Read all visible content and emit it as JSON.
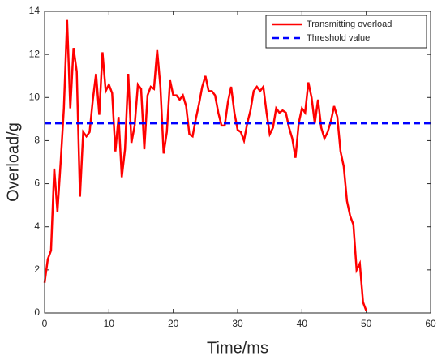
{
  "chart_data": {
    "type": "line",
    "xlabel": "Time/ms",
    "ylabel": "Overload/g",
    "xlim": [
      0,
      60
    ],
    "xticks": [
      0,
      10,
      20,
      30,
      40,
      50,
      60
    ],
    "ylim": [
      0,
      14
    ],
    "yticks": [
      0,
      2,
      4,
      6,
      8,
      10,
      12,
      14
    ],
    "legend": "upper right",
    "grid": false,
    "series": [
      {
        "name": "Transmitting overload",
        "color": "#ff0000",
        "dash": "solid",
        "x": [
          0,
          0.5,
          1,
          1.5,
          2,
          2.5,
          3,
          3.5,
          4,
          4.5,
          5,
          5.5,
          6,
          6.5,
          7,
          7.5,
          8,
          8.5,
          9,
          9.5,
          10,
          10.5,
          11,
          11.5,
          12,
          12.5,
          13,
          13.5,
          14,
          14.5,
          15,
          15.5,
          16,
          16.5,
          17,
          17.5,
          18,
          18.5,
          19,
          19.5,
          20,
          20.5,
          21,
          21.5,
          22,
          22.5,
          23,
          23.5,
          24,
          24.5,
          25,
          25.5,
          26,
          26.5,
          27,
          27.5,
          28,
          28.5,
          29,
          29.5,
          30,
          30.5,
          31,
          31.5,
          32,
          32.5,
          33,
          33.5,
          34,
          34.5,
          35,
          35.5,
          36,
          36.5,
          37,
          37.5,
          38,
          38.5,
          39,
          39.5,
          40,
          40.5,
          41,
          41.5,
          42,
          42.5,
          43,
          43.5,
          44,
          44.5,
          45,
          45.5,
          46,
          46.5,
          47,
          47.5,
          48,
          48.5,
          49,
          49.5,
          50
        ],
        "values": [
          1.4,
          2.5,
          2.9,
          6.7,
          4.7,
          7.0,
          9.5,
          13.6,
          9.5,
          12.3,
          11.2,
          5.4,
          8.4,
          8.2,
          8.4,
          9.9,
          11.1,
          9.2,
          12.1,
          10.3,
          10.6,
          10.2,
          7.5,
          9.1,
          6.3,
          7.6,
          11.1,
          7.9,
          8.7,
          10.6,
          10.4,
          7.6,
          10.1,
          10.5,
          10.4,
          12.2,
          10.5,
          7.4,
          8.4,
          10.8,
          10.1,
          10.1,
          9.9,
          10.1,
          9.6,
          8.3,
          8.2,
          9.0,
          9.7,
          10.5,
          11.0,
          10.3,
          10.3,
          10.1,
          9.3,
          8.7,
          8.7,
          9.8,
          10.5,
          9.3,
          8.5,
          8.4,
          8.0,
          8.8,
          9.4,
          10.3,
          10.5,
          10.3,
          10.5,
          9.3,
          8.3,
          8.6,
          9.5,
          9.3,
          9.4,
          9.3,
          8.6,
          8.1,
          7.2,
          8.8,
          9.5,
          9.3,
          10.7,
          10.0,
          8.8,
          9.9,
          8.6,
          8.1,
          8.4,
          8.9,
          9.6,
          9.1,
          7.5,
          6.8,
          5.2,
          4.5,
          4.1,
          2.0,
          2.3,
          0.5,
          0.1
        ]
      },
      {
        "name": "Threshold value",
        "color": "#0000ff",
        "dash": "dashed",
        "x": [
          0,
          60
        ],
        "values": [
          8.8,
          8.8
        ]
      }
    ]
  }
}
